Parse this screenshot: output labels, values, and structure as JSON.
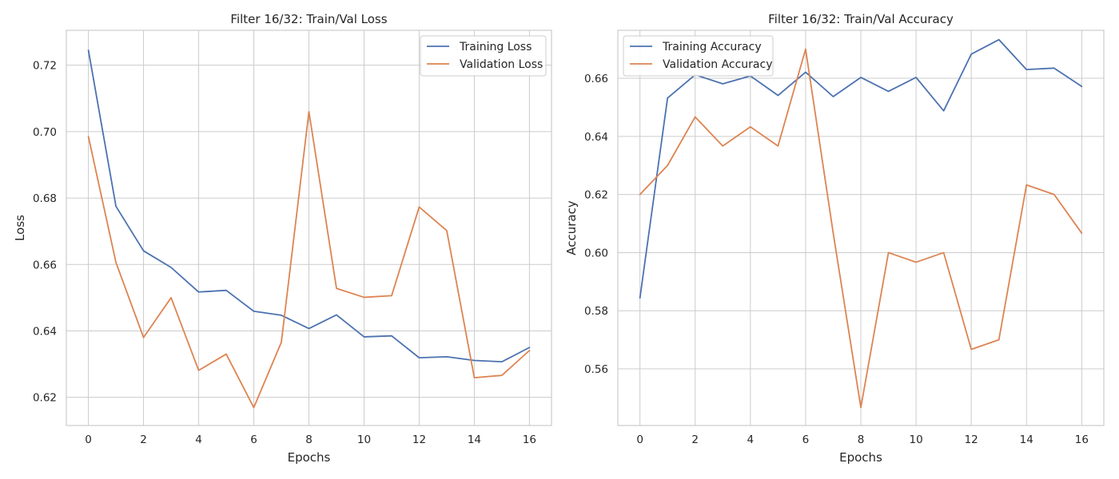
{
  "figure": {
    "colors": {
      "training": "#4c72b0",
      "validation": "#dd8452",
      "grid": "#cccccc",
      "frame": "#cccccc",
      "background": "#ffffff"
    }
  },
  "chart_data": [
    {
      "type": "line",
      "title": "Filter 16/32:  Train/Val Loss",
      "xlabel": "Epochs",
      "ylabel": "Loss",
      "xlim": [
        -0.8,
        16.8
      ],
      "ylim": [
        0.6115,
        0.7305
      ],
      "xticks": [
        0,
        2,
        4,
        6,
        8,
        10,
        12,
        14,
        16
      ],
      "xtick_labels": [
        "0",
        "2",
        "4",
        "6",
        "8",
        "10",
        "12",
        "14",
        "16"
      ],
      "yticks": [
        0.62,
        0.64,
        0.66,
        0.68,
        0.7,
        0.72
      ],
      "ytick_labels": [
        "0.62",
        "0.64",
        "0.66",
        "0.68",
        "0.70",
        "0.72"
      ],
      "grid": true,
      "legend": "top-right",
      "x": [
        0,
        1,
        2,
        3,
        4,
        5,
        6,
        7,
        8,
        9,
        10,
        11,
        12,
        13,
        14,
        15,
        16
      ],
      "series": [
        {
          "name": "Training Loss",
          "color": "#4c72b0",
          "values": [
            0.7245,
            0.6775,
            0.6641,
            0.6591,
            0.6517,
            0.6522,
            0.6459,
            0.6447,
            0.6407,
            0.6448,
            0.6382,
            0.6385,
            0.6319,
            0.6322,
            0.6311,
            0.6307,
            0.635
          ]
        },
        {
          "name": "Validation Loss",
          "color": "#dd8452",
          "values": [
            0.6985,
            0.6606,
            0.638,
            0.65,
            0.6281,
            0.633,
            0.6169,
            0.6366,
            0.706,
            0.6528,
            0.6501,
            0.6506,
            0.6773,
            0.6702,
            0.6259,
            0.6266,
            0.6341
          ]
        }
      ]
    },
    {
      "type": "line",
      "title": "Filter 16/32:  Train/Val Accuracy",
      "xlabel": "Epochs",
      "ylabel": "Accuracy",
      "xlim": [
        -0.8,
        16.8
      ],
      "ylim": [
        0.5405,
        0.6765
      ],
      "xticks": [
        0,
        2,
        4,
        6,
        8,
        10,
        12,
        14,
        16
      ],
      "xtick_labels": [
        "0",
        "2",
        "4",
        "6",
        "8",
        "10",
        "12",
        "14",
        "16"
      ],
      "yticks": [
        0.56,
        0.58,
        0.6,
        0.62,
        0.64,
        0.66
      ],
      "ytick_labels": [
        "0.56",
        "0.58",
        "0.60",
        "0.62",
        "0.64",
        "0.66"
      ],
      "grid": true,
      "legend": "top-left",
      "x": [
        0,
        1,
        2,
        3,
        4,
        5,
        6,
        7,
        8,
        9,
        10,
        11,
        12,
        13,
        14,
        15,
        16
      ],
      "series": [
        {
          "name": "Training Accuracy",
          "color": "#4c72b0",
          "values": [
            0.5844,
            0.6532,
            0.6612,
            0.6581,
            0.6608,
            0.6541,
            0.6621,
            0.6537,
            0.6603,
            0.6555,
            0.6603,
            0.6488,
            0.6683,
            0.6733,
            0.663,
            0.6635,
            0.6572
          ]
        },
        {
          "name": "Validation Accuracy",
          "color": "#dd8452",
          "values": [
            0.62,
            0.63,
            0.6467,
            0.6367,
            0.6433,
            0.6367,
            0.67,
            0.6067,
            0.5467,
            0.6,
            0.5967,
            0.6,
            0.5667,
            0.57,
            0.6233,
            0.62,
            0.6067
          ]
        }
      ]
    }
  ]
}
